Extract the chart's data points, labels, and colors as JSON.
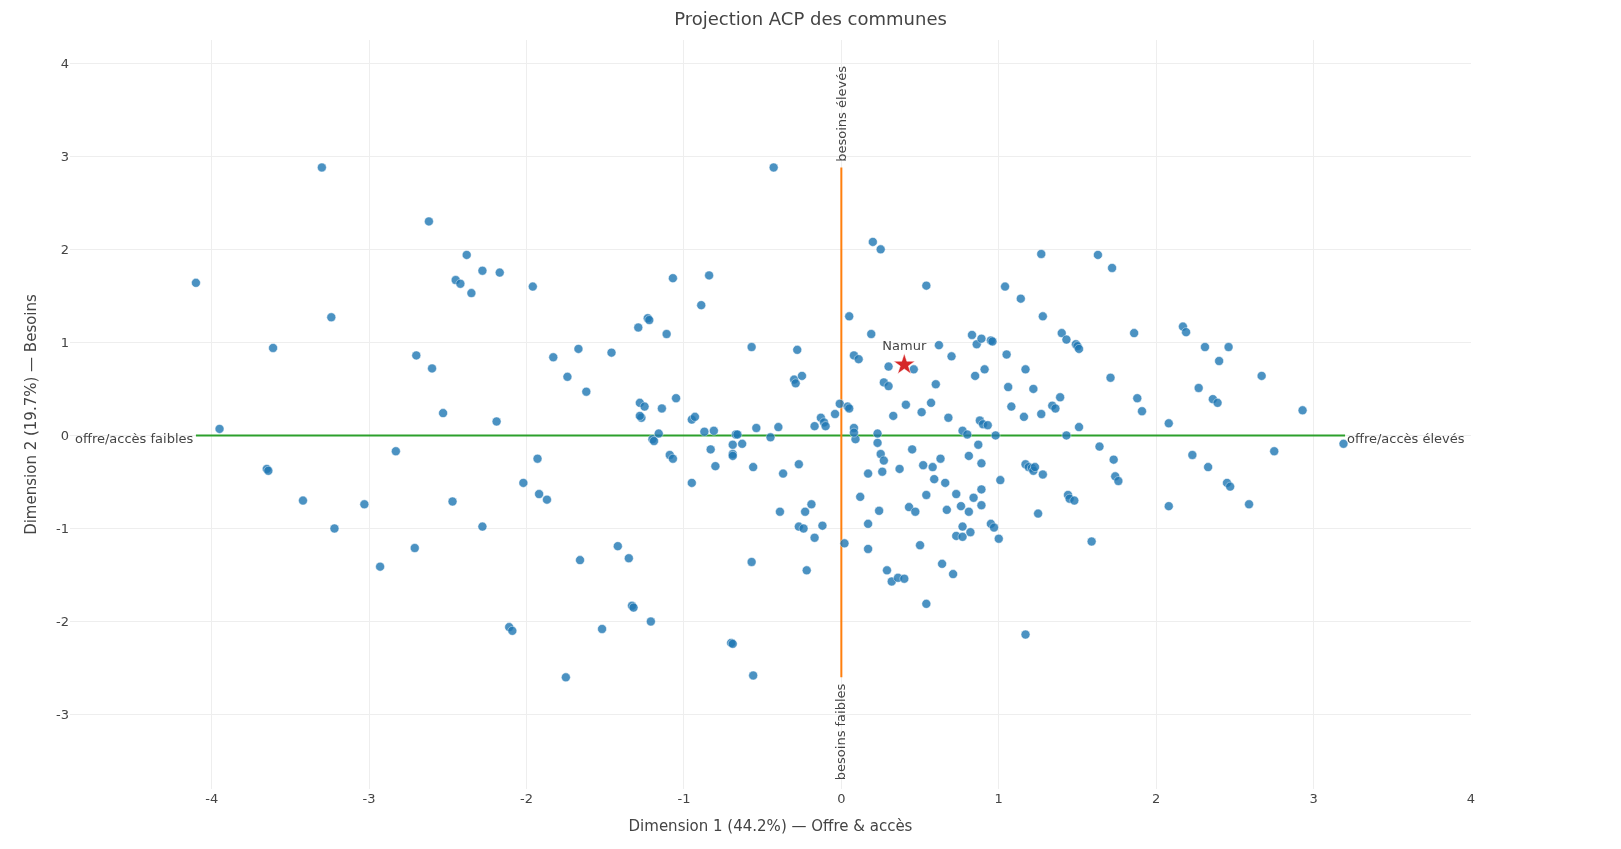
{
  "chart_data": {
    "type": "scatter",
    "title": "Projection ACP des communes",
    "xlabel": "Dimension 1 (44.2%) — Offre & accès",
    "ylabel": "Dimension 2 (19.7%) — Besoins",
    "xlim": [
      -4.9,
      4
    ],
    "xticks": [
      -4,
      -3,
      -2,
      -1,
      0,
      1,
      2,
      3,
      4
    ],
    "ylim": [
      -3.8,
      4.25
    ],
    "yticks": [
      -3,
      -2,
      -1,
      0,
      1,
      2,
      3,
      4
    ],
    "grid": true,
    "legend": false,
    "marker": "circle",
    "series": [
      {
        "type": "line",
        "marker": "none",
        "color": "#2ca02c",
        "x": [
          -4.1,
          3.2
        ],
        "values": [
          0,
          0
        ]
      },
      {
        "type": "line",
        "marker": "none",
        "color": "#ff7f0e",
        "x": [
          0,
          0
        ],
        "values": [
          -2.6,
          2.88
        ]
      },
      {
        "color": "#1f77b4",
        "x": [
          -4.1,
          -3.95,
          -3.65,
          -3.64,
          -3.61,
          -3.42,
          -3.3,
          -3.24,
          -3.22,
          -3.03,
          -2.93,
          -2.83,
          -2.71,
          -2.7,
          -2.62,
          -2.6,
          -2.53,
          -2.47,
          -2.45,
          -2.42,
          -2.38,
          -2.35,
          -2.28,
          -2.28,
          -2.19,
          -2.17,
          -2.11,
          -2.09,
          -2.02,
          -1.96,
          -1.93,
          -1.92,
          -1.87,
          -1.83,
          -1.75,
          -1.74,
          -1.67,
          -1.66,
          -1.62,
          -1.52,
          -1.46,
          -1.42,
          -1.35,
          -1.33,
          -1.32,
          -1.29,
          -1.28,
          -1.27,
          -1.28,
          -1.25,
          -1.23,
          -1.22,
          -1.21,
          -1.2,
          -1.19,
          -1.16,
          -1.14,
          -1.11,
          -1.09,
          -1.07,
          -1.07,
          -1.05,
          -0.95,
          -0.93,
          -0.95,
          -0.89,
          -0.87,
          -0.81,
          -0.84,
          -0.83,
          -0.8,
          -0.7,
          -0.69,
          -0.69,
          -0.69,
          -0.69,
          -0.67,
          -0.66,
          -0.63,
          -0.57,
          -0.57,
          -0.56,
          -0.56,
          -0.54,
          -0.45,
          -0.43,
          -0.4,
          -0.39,
          -0.37,
          -0.3,
          -0.29,
          -0.28,
          -0.27,
          -0.27,
          -0.24,
          -0.25,
          -0.23,
          -0.22,
          -0.19,
          -0.17,
          -0.17,
          -0.13,
          -0.11,
          -0.1,
          -0.12,
          -0.04,
          -0.01,
          0.02,
          0.04,
          0.05,
          0.05,
          0.08,
          0.11,
          0.08,
          0.09,
          0.08,
          0.12,
          0.17,
          0.17,
          0.17,
          0.19,
          0.2,
          0.23,
          0.23,
          0.24,
          0.25,
          0.27,
          0.25,
          0.26,
          0.27,
          0.3,
          0.29,
          0.32,
          0.36,
          0.3,
          0.33,
          0.37,
          0.4,
          0.41,
          0.43,
          0.45,
          0.46,
          0.47,
          0.5,
          0.51,
          0.52,
          0.54,
          0.54,
          0.54,
          0.57,
          0.58,
          0.59,
          0.6,
          0.62,
          0.63,
          0.64,
          0.66,
          0.67,
          0.68,
          0.7,
          0.71,
          0.73,
          0.73,
          0.77,
          0.76,
          0.77,
          0.77,
          0.81,
          0.8,
          0.81,
          0.82,
          0.83,
          0.84,
          0.85,
          0.86,
          0.87,
          0.88,
          0.9,
          0.89,
          0.89,
          0.89,
          0.89,
          0.91,
          0.95,
          0.96,
          0.93,
          0.95,
          0.97,
          0.98,
          1.0,
          1.01,
          1.04,
          1.05,
          1.06,
          1.08,
          1.14,
          1.16,
          1.17,
          1.17,
          1.19,
          1.17,
          1.21,
          1.22,
          1.23,
          1.22,
          1.25,
          1.27,
          1.27,
          1.28,
          1.28,
          1.34,
          1.36,
          1.39,
          1.4,
          1.43,
          1.43,
          1.44,
          1.45,
          1.48,
          1.49,
          1.5,
          1.51,
          1.51,
          1.59,
          1.63,
          1.64,
          1.71,
          1.72,
          1.73,
          1.74,
          1.76,
          1.86,
          1.88,
          1.91,
          2.08,
          2.08,
          2.17,
          2.19,
          2.23,
          2.27,
          2.31,
          2.33,
          2.36,
          2.39,
          2.4,
          2.45,
          2.47,
          2.46,
          2.67,
          2.59,
          2.75,
          2.93,
          3.19
        ],
        "values": [
          1.64,
          0.07,
          -0.36,
          -0.38,
          0.94,
          -0.7,
          2.88,
          1.27,
          -1.0,
          -0.74,
          -1.41,
          -0.17,
          -1.21,
          0.86,
          2.3,
          0.72,
          0.24,
          -0.71,
          1.67,
          1.63,
          1.94,
          1.53,
          -0.98,
          1.77,
          0.15,
          1.75,
          -2.06,
          -2.1,
          -0.51,
          1.6,
          -0.25,
          -0.63,
          -0.69,
          0.84,
          -2.6,
          0.63,
          0.93,
          -1.34,
          0.47,
          -2.08,
          0.89,
          -1.19,
          -1.32,
          -1.83,
          -1.85,
          1.16,
          0.35,
          0.19,
          0.21,
          0.31,
          1.26,
          1.24,
          -2.0,
          -0.04,
          -0.06,
          0.02,
          0.29,
          1.09,
          -0.21,
          -0.25,
          1.69,
          0.4,
          0.17,
          0.2,
          -0.51,
          1.4,
          0.04,
          0.05,
          1.72,
          -0.15,
          -0.33,
          -2.23,
          -2.24,
          -0.1,
          -0.2,
          -0.22,
          0.01,
          0.01,
          -0.09,
          -1.36,
          0.95,
          -2.58,
          -0.34,
          0.08,
          -0.02,
          2.88,
          0.09,
          -0.82,
          -0.41,
          0.6,
          0.56,
          0.92,
          -0.31,
          -0.98,
          -1.0,
          0.64,
          -0.82,
          -1.45,
          -0.74,
          0.1,
          -1.1,
          0.19,
          0.14,
          0.1,
          -0.97,
          0.23,
          0.34,
          -1.16,
          0.31,
          0.29,
          1.28,
          0.86,
          0.82,
          0.08,
          -0.04,
          0.03,
          -0.66,
          -0.41,
          -0.95,
          -1.22,
          1.09,
          2.08,
          0.02,
          -0.08,
          -0.81,
          -0.2,
          -0.27,
          2.0,
          -0.39,
          0.57,
          0.53,
          -1.45,
          -1.57,
          -1.53,
          0.74,
          0.21,
          -0.36,
          -1.54,
          0.33,
          -0.77,
          -0.15,
          0.71,
          -0.82,
          -1.18,
          0.25,
          -0.32,
          1.61,
          -0.64,
          -1.81,
          0.35,
          -0.34,
          -0.47,
          0.55,
          0.97,
          -0.25,
          -1.38,
          -0.51,
          -0.8,
          0.19,
          0.85,
          -1.49,
          -0.63,
          -1.08,
          -1.09,
          -0.76,
          0.05,
          -0.98,
          -0.22,
          0.01,
          -0.82,
          -1.04,
          1.08,
          -0.67,
          0.64,
          0.98,
          -0.1,
          0.16,
          0.12,
          -0.3,
          -0.58,
          -0.75,
          1.04,
          0.71,
          1.02,
          1.01,
          0.11,
          -0.95,
          -0.99,
          0.0,
          -1.11,
          -0.48,
          1.6,
          0.87,
          0.52,
          0.31,
          1.47,
          0.2,
          0.71,
          -0.31,
          -0.34,
          -2.14,
          -0.35,
          -0.38,
          -0.34,
          0.5,
          -0.84,
          0.23,
          1.95,
          -0.42,
          1.28,
          0.32,
          0.29,
          0.41,
          1.1,
          1.03,
          0.0,
          -0.64,
          -0.68,
          -0.7,
          0.98,
          0.96,
          0.93,
          0.09,
          -1.14,
          1.94,
          -0.12,
          0.62,
          1.8,
          -0.26,
          -0.44,
          -0.49,
          1.1,
          0.4,
          0.26,
          0.13,
          -0.76,
          1.17,
          1.11,
          -0.21,
          0.51,
          0.95,
          -0.34,
          0.39,
          0.35,
          0.8,
          -0.51,
          -0.55,
          0.95,
          0.64,
          -0.74,
          -0.17,
          0.27,
          -0.09
        ]
      },
      {
        "type": "scatter",
        "name": "Namur",
        "marker": "star",
        "color": "#d62728",
        "x": [
          0.4
        ],
        "values": [
          0.76
        ]
      }
    ],
    "annotations": [
      {
        "text": "offre/accès faibles",
        "x": -4.1,
        "y": 0
      },
      {
        "text": "offre/accès élevés",
        "x": 3.2,
        "y": 0
      },
      {
        "text": "besoins élevés",
        "x": 0,
        "y": 2.88
      },
      {
        "text": "besoins faibles",
        "x": 0,
        "y": -2.6
      }
    ]
  }
}
